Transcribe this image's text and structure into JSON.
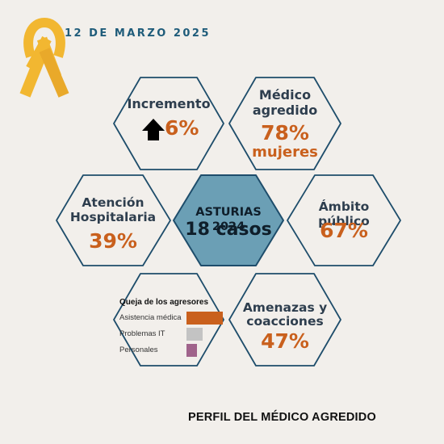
{
  "date": "12 DE MARZO 2025",
  "footer": "PERFIL DEL MÉDICO AGREDIDO",
  "colors": {
    "accent_orange": "#c9601d",
    "dark_text": "#2e3e4e",
    "hex_stroke": "#1e4d6b",
    "center_fill": "#6b9fb5",
    "ribbon": "#f2b731"
  },
  "center": {
    "line1": "ASTURIAS 2024",
    "line2": "18 casos"
  },
  "cells": {
    "incremento": {
      "label": "Incremento",
      "value": "6%",
      "icon": "up-arrow-icon"
    },
    "medico": {
      "label1": "Médico",
      "label2": "agredido",
      "value": "78%",
      "value2": "mujeres"
    },
    "atencion": {
      "label1": "Atención",
      "label2": "Hospitalaria",
      "value": "39%"
    },
    "ambito": {
      "label": "Ámbito público",
      "value": "67%"
    },
    "amenazas": {
      "label1": "Amenazas y",
      "label2": "coacciones",
      "value": "47%"
    }
  },
  "chart_data": {
    "type": "bar",
    "title": "Queja de los agresores",
    "categories": [
      "Asistencia médica",
      "Problemas IT",
      "Personales"
    ],
    "values": [
      1,
      0.45,
      0.28
    ],
    "colors": [
      "#c9601d",
      "#c3c3c3",
      "#a0638b"
    ]
  }
}
